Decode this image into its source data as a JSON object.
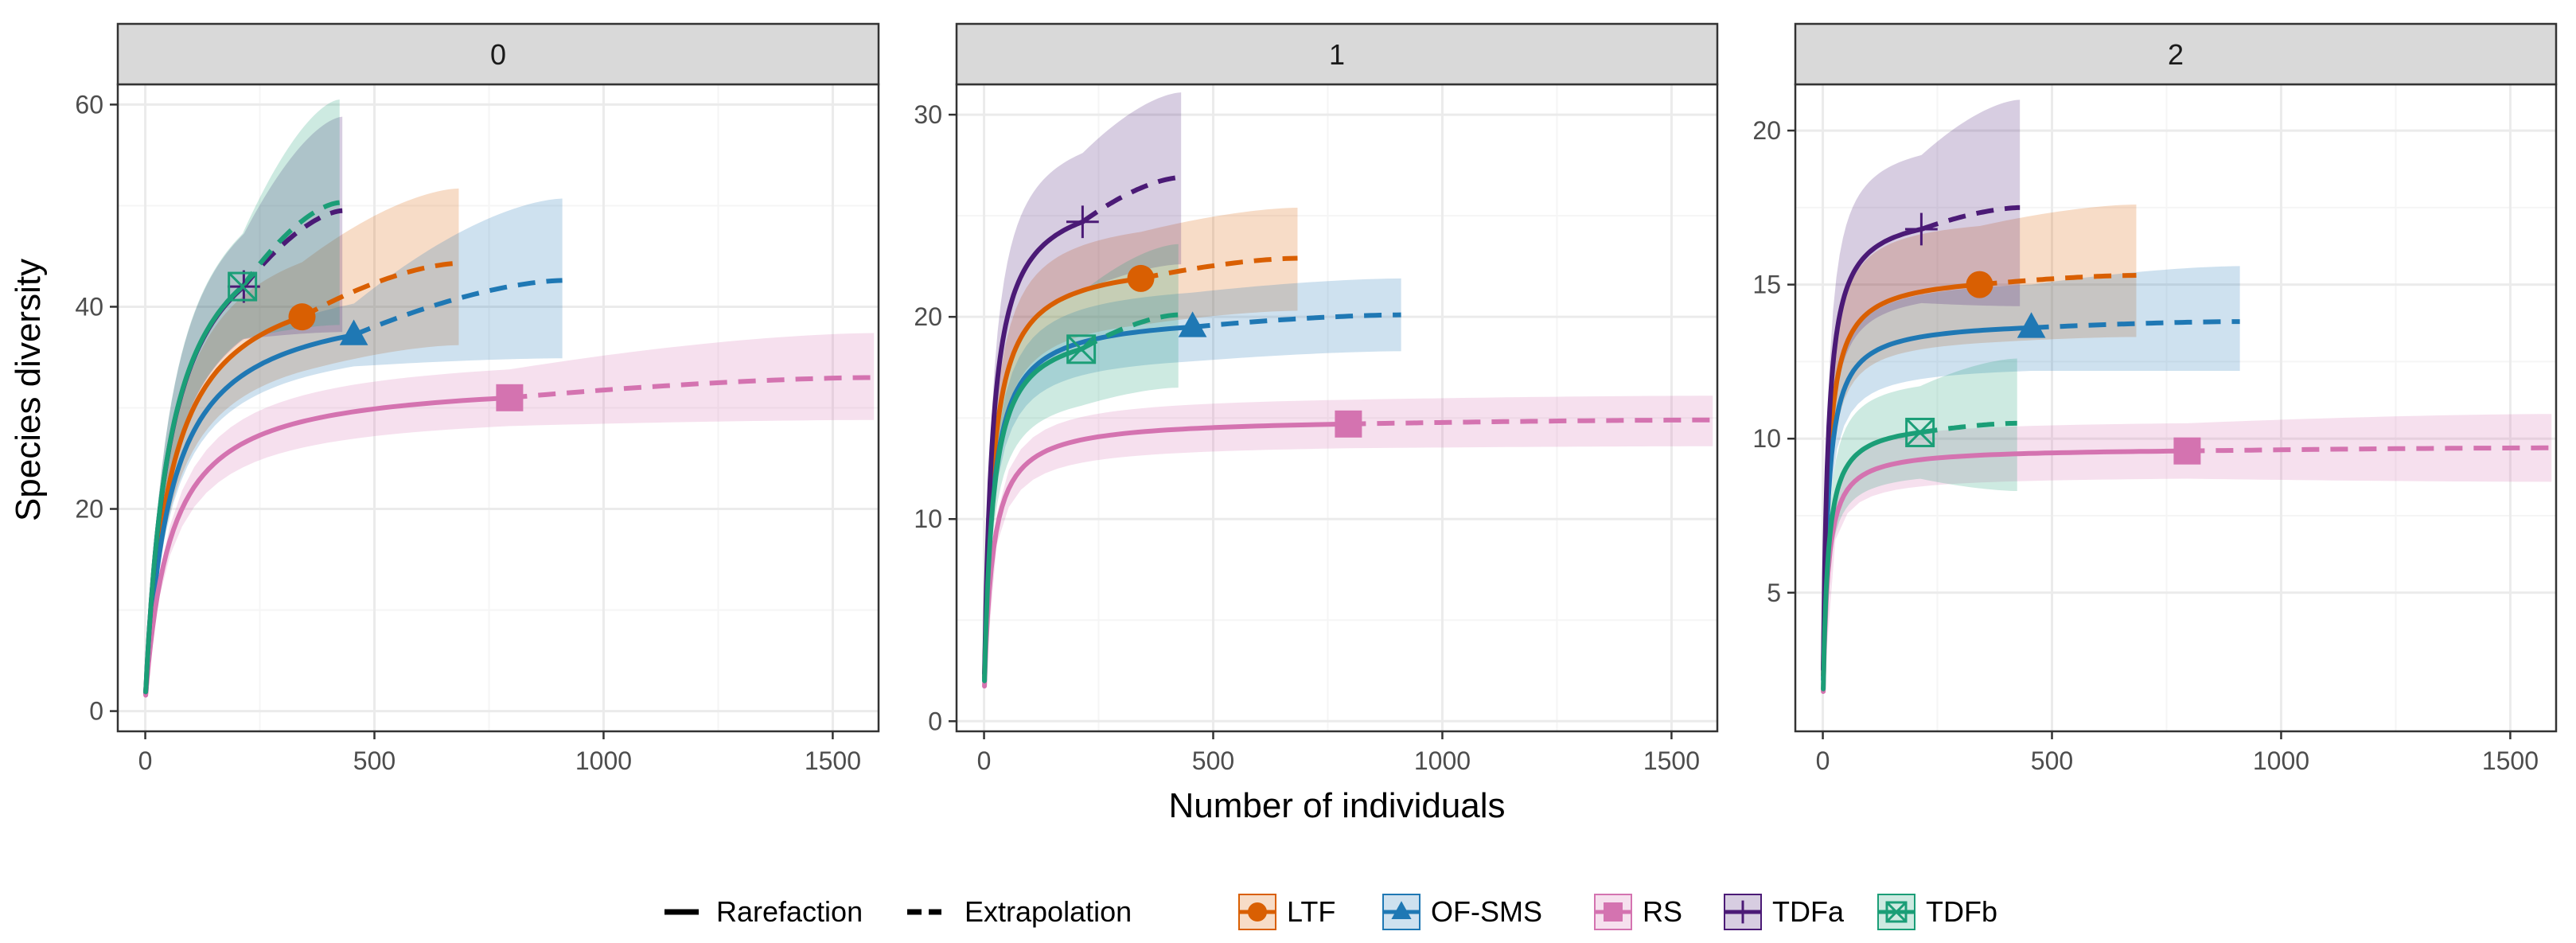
{
  "colors": {
    "LTF": "#d95f02",
    "OF-SMS": "#1f78b4",
    "RS": "#d473b0",
    "TDFa": "#4b1a76",
    "TDFb": "#1b9e77",
    "strip_bg": "#d9d9d9",
    "grid_major": "#ebebeb",
    "grid_minor": "#f5f5f5"
  },
  "chart_data": {
    "type": "line",
    "title": "",
    "xlabel": "Number of individuals",
    "ylabel": "Species diversity",
    "facets": [
      {
        "label": "0",
        "xlim": [
          -60,
          1600
        ],
        "ylim": [
          -2,
          62
        ],
        "xticks": [
          0,
          500,
          1000,
          1500
        ],
        "yticks": [
          0,
          20,
          40,
          60
        ],
        "series": [
          {
            "name": "LTF",
            "n_obs": 342,
            "obs": 39,
            "n_max": 684,
            "extrap_end": 44.3,
            "ci_lo_obs": 33.6,
            "ci_hi_obs": 44.4,
            "ci_lo_end": 36.2,
            "ci_hi_end": 51.7
          },
          {
            "name": "OF-SMS",
            "n_obs": 455,
            "obs": 37.2,
            "n_max": 910,
            "extrap_end": 42.6,
            "ci_lo_obs": 34.1,
            "ci_hi_obs": 40.3,
            "ci_lo_end": 34.9,
            "ci_hi_end": 50.7
          },
          {
            "name": "RS",
            "n_obs": 795,
            "obs": 31,
            "n_max": 1590,
            "extrap_end": 33,
            "ci_lo_obs": 28.2,
            "ci_hi_obs": 33.8,
            "ci_lo_end": 28.8,
            "ci_hi_end": 37.4
          },
          {
            "name": "TDFa",
            "n_obs": 215,
            "obs": 42,
            "n_max": 430,
            "extrap_end": 49.5,
            "ci_lo_obs": 36.8,
            "ci_hi_obs": 47.2,
            "ci_lo_end": 37.5,
            "ci_hi_end": 58.8
          },
          {
            "name": "TDFb",
            "n_obs": 212,
            "obs": 42,
            "n_max": 424,
            "extrap_end": 50.3,
            "ci_lo_obs": 36.8,
            "ci_hi_obs": 47.2,
            "ci_lo_end": 38.2,
            "ci_hi_end": 60.5
          }
        ]
      },
      {
        "label": "1",
        "xlim": [
          -60,
          1600
        ],
        "ylim": [
          -0.5,
          31.5
        ],
        "xticks": [
          0,
          500,
          1000,
          1500
        ],
        "yticks": [
          0,
          10,
          20,
          30
        ],
        "series": [
          {
            "name": "LTF",
            "n_obs": 342,
            "obs": 21.9,
            "n_max": 684,
            "extrap_end": 22.9,
            "ci_lo_obs": 19.6,
            "ci_hi_obs": 24.2,
            "ci_lo_end": 20.3,
            "ci_hi_end": 25.4
          },
          {
            "name": "OF-SMS",
            "n_obs": 455,
            "obs": 19.5,
            "n_max": 910,
            "extrap_end": 20.1,
            "ci_lo_obs": 17.8,
            "ci_hi_obs": 21.2,
            "ci_lo_end": 18.3,
            "ci_hi_end": 21.9
          },
          {
            "name": "RS",
            "n_obs": 795,
            "obs": 14.7,
            "n_max": 1590,
            "extrap_end": 14.9,
            "ci_lo_obs": 13.5,
            "ci_hi_obs": 15.9,
            "ci_lo_end": 13.6,
            "ci_hi_end": 16.1
          },
          {
            "name": "TDFa",
            "n_obs": 215,
            "obs": 24.7,
            "n_max": 430,
            "extrap_end": 26.9,
            "ci_lo_obs": 21.3,
            "ci_hi_obs": 28.1,
            "ci_lo_end": 22.6,
            "ci_hi_end": 31.1
          },
          {
            "name": "TDFb",
            "n_obs": 212,
            "obs": 18.4,
            "n_max": 424,
            "extrap_end": 20.1,
            "ci_lo_obs": 15.6,
            "ci_hi_obs": 21.2,
            "ci_lo_end": 16.5,
            "ci_hi_end": 23.6
          }
        ]
      },
      {
        "label": "2",
        "xlim": [
          -60,
          1600
        ],
        "ylim": [
          0.5,
          21.5
        ],
        "xticks": [
          0,
          500,
          1000,
          1500
        ],
        "yticks": [
          5,
          10,
          15,
          20
        ],
        "series": [
          {
            "name": "LTF",
            "n_obs": 342,
            "obs": 15,
            "n_max": 684,
            "extrap_end": 15.3,
            "ci_lo_obs": 13.1,
            "ci_hi_obs": 16.9,
            "ci_lo_end": 13.3,
            "ci_hi_end": 17.6
          },
          {
            "name": "OF-SMS",
            "n_obs": 455,
            "obs": 13.6,
            "n_max": 910,
            "extrap_end": 13.8,
            "ci_lo_obs": 12.2,
            "ci_hi_obs": 15,
            "ci_lo_end": 12.2,
            "ci_hi_end": 15.6
          },
          {
            "name": "RS",
            "n_obs": 795,
            "obs": 9.6,
            "n_max": 1590,
            "extrap_end": 9.7,
            "ci_lo_obs": 8.7,
            "ci_hi_obs": 10.5,
            "ci_lo_end": 8.6,
            "ci_hi_end": 10.8
          },
          {
            "name": "TDFa",
            "n_obs": 215,
            "obs": 16.8,
            "n_max": 430,
            "extrap_end": 17.5,
            "ci_lo_obs": 14.4,
            "ci_hi_obs": 19.2,
            "ci_lo_end": 14.3,
            "ci_hi_end": 21
          },
          {
            "name": "TDFb",
            "n_obs": 212,
            "obs": 10.2,
            "n_max": 424,
            "extrap_end": 10.5,
            "ci_lo_obs": 8.7,
            "ci_hi_obs": 11.7,
            "ci_lo_end": 8.3,
            "ci_hi_end": 12.6
          }
        ]
      }
    ],
    "legend": {
      "position": "bottom",
      "line_types": [
        "Rarefaction",
        "Extrapolation"
      ],
      "groups": [
        "LTF",
        "OF-SMS",
        "RS",
        "TDFa",
        "TDFb"
      ]
    }
  }
}
